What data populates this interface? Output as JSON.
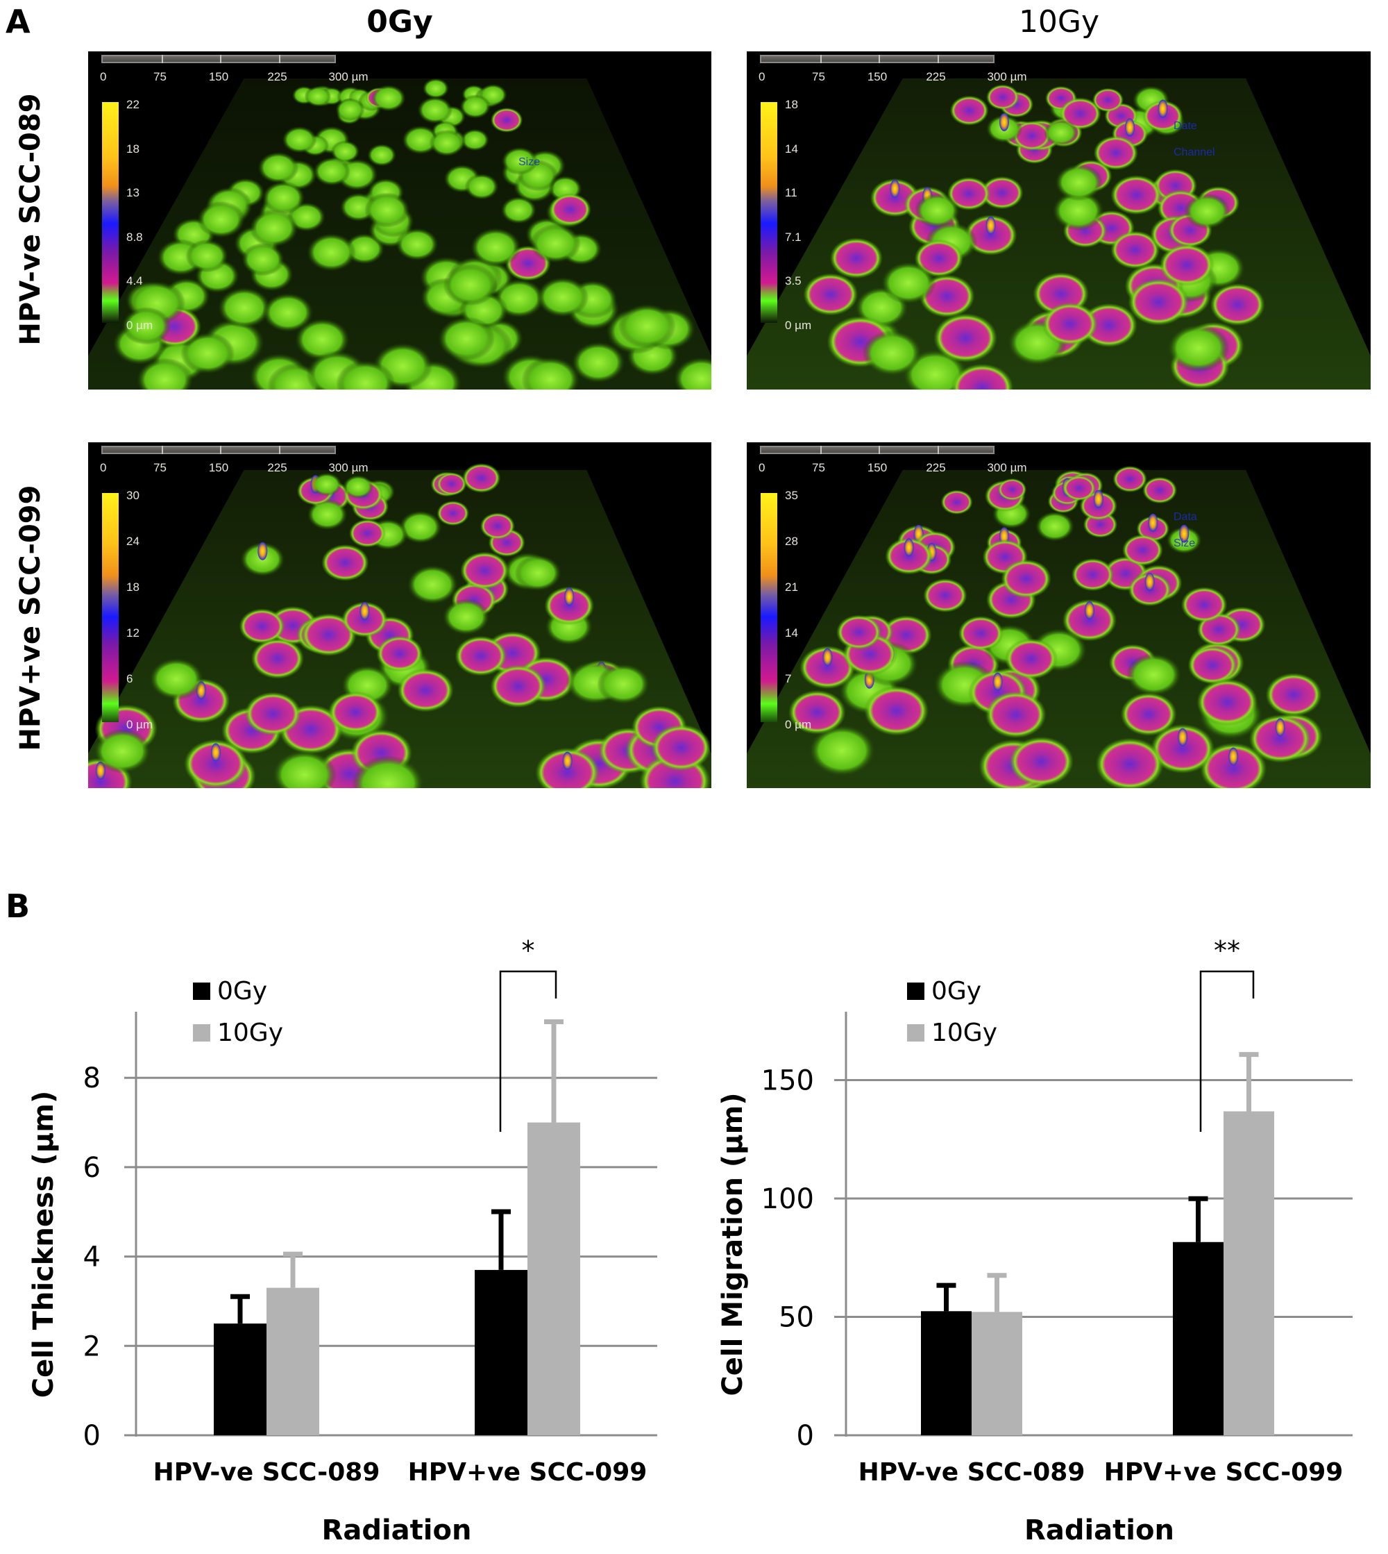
{
  "figure": {
    "panel_a_label": "A",
    "panel_b_label": "B",
    "column_headers": [
      "0Gy",
      "10Gy"
    ],
    "row_labels": [
      "HPV-ve SCC-089",
      "HPV+ve SCC-099"
    ],
    "micrographs": [
      {
        "id": "hpvneg-0gy",
        "scale_bar": {
          "ticks": [
            "0",
            "75",
            "150",
            "225",
            "300 µm"
          ]
        },
        "colorbar": {
          "labels": [
            "22",
            "18",
            "13",
            "8.8",
            "4.4",
            "0 µm"
          ]
        },
        "overlay_text": [
          "Size"
        ]
      },
      {
        "id": "hpvneg-10gy",
        "scale_bar": {
          "ticks": [
            "0",
            "75",
            "150",
            "225",
            "300 µm"
          ]
        },
        "colorbar": {
          "labels": [
            "18",
            "14",
            "11",
            "7.1",
            "3.5",
            "0 µm"
          ]
        },
        "overlay_text": [
          "Date",
          "Channel"
        ]
      },
      {
        "id": "hpvpos-0gy",
        "scale_bar": {
          "ticks": [
            "0",
            "75",
            "150",
            "225",
            "300 µm"
          ]
        },
        "colorbar": {
          "labels": [
            "30",
            "24",
            "18",
            "12",
            "6",
            "0 µm"
          ]
        },
        "overlay_text": []
      },
      {
        "id": "hpvpos-10gy",
        "scale_bar": {
          "ticks": [
            "0",
            "75",
            "150",
            "225",
            "300 µm"
          ]
        },
        "colorbar": {
          "labels": [
            "35",
            "28",
            "21",
            "14",
            "7",
            "0 µm"
          ]
        },
        "overlay_text": [
          "Data",
          "Size"
        ]
      }
    ],
    "colors": {
      "bar_0gy": "#000000",
      "bar_10gy": "#b3b3b3",
      "gridline": "#8c8c8c",
      "cell_green": "#7ae01c",
      "cell_magenta": "#c8288f",
      "cell_blue": "#2a2ae0",
      "cell_yellow": "#ffd21a"
    }
  },
  "chart_data": [
    {
      "type": "bar",
      "title": "",
      "categories": [
        "HPV-ve SCC-089",
        "HPV+ve SCC-099"
      ],
      "series": [
        {
          "name": "0Gy",
          "values": [
            2.5,
            3.7
          ],
          "error_upper": [
            0.65,
            1.35
          ],
          "color": "#000000"
        },
        {
          "name": "10Gy",
          "values": [
            3.3,
            7.0
          ],
          "error_upper": [
            0.8,
            2.3
          ],
          "color": "#b3b3b3"
        }
      ],
      "xlabel": "Radiation",
      "ylabel": "Cell Thickness (µm)",
      "ylim": [
        0,
        9.5
      ],
      "yticks": [
        0,
        2,
        4,
        6,
        8
      ],
      "grid": true,
      "legend_position": "upper-left",
      "annotations": [
        {
          "text": "*",
          "category": "HPV+ve SCC-099",
          "type": "significance-bracket"
        }
      ]
    },
    {
      "type": "bar",
      "title": "",
      "categories": [
        "HPV-ve SCC-089",
        "HPV+ve SCC-099"
      ],
      "series": [
        {
          "name": "0Gy",
          "values": [
            52.4,
            81.6
          ],
          "error_upper": [
            11.8,
            19.2
          ],
          "color": "#000000"
        },
        {
          "name": "10Gy",
          "values": [
            52.1,
            136.8
          ],
          "error_upper": [
            16.3,
            24.9
          ],
          "color": "#b3b3b3"
        }
      ],
      "xlabel": "Radiation",
      "ylabel": "Cell Migration (µm)",
      "ylim": [
        0,
        180
      ],
      "yticks": [
        0,
        50,
        100,
        150
      ],
      "grid": true,
      "legend_position": "upper-left",
      "annotations": [
        {
          "text": "**",
          "category": "HPV+ve SCC-099",
          "type": "significance-bracket"
        }
      ]
    }
  ]
}
